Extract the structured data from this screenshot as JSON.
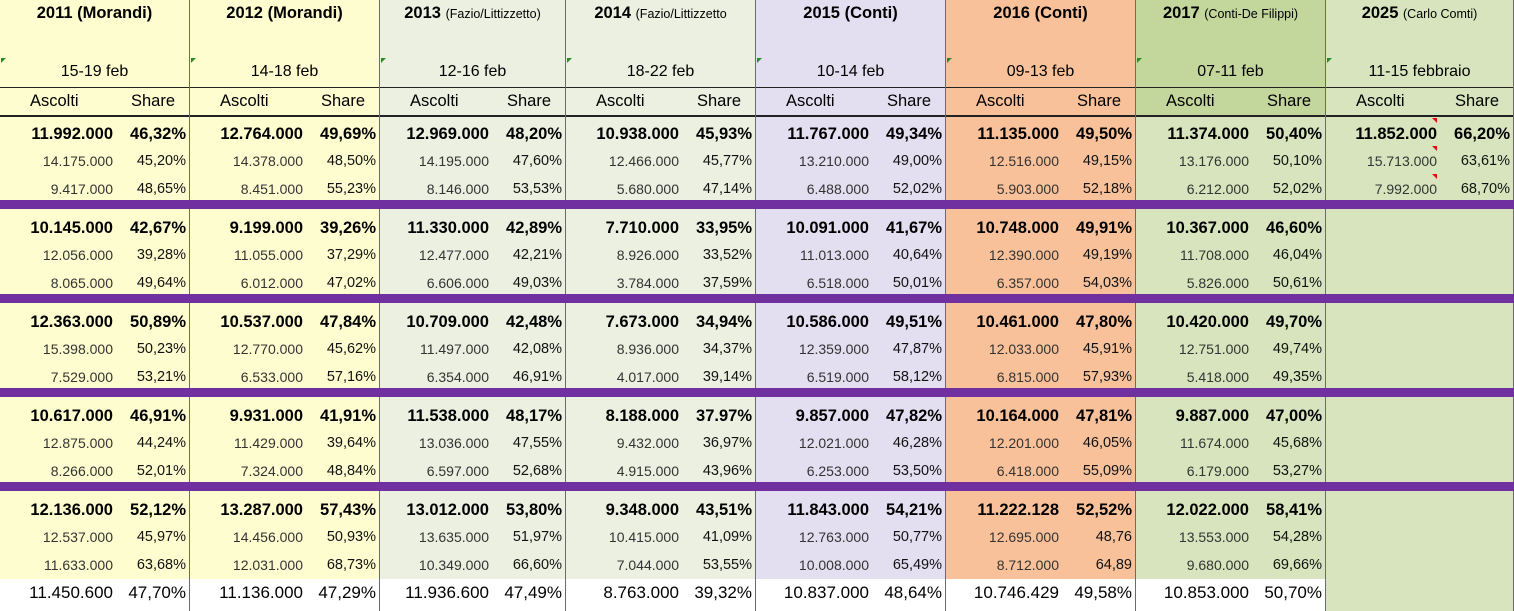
{
  "colors": {
    "divider": "#7030a0",
    "corner_marker": "#2b8a2b",
    "comment_marker": "#e01010"
  },
  "labels": {
    "ascolti": "Ascolti",
    "share": "Share"
  },
  "columns": [
    {
      "year": "2011",
      "host": "(Morandi)",
      "host_style": "bold",
      "dates": "15-19 feb",
      "bg": "#fdfdcf",
      "hdr_bg": "#fdfdcf",
      "nights": [
        [
          [
            "11.992.000",
            "46,32%"
          ],
          [
            "14.175.000",
            "45,20%"
          ],
          [
            "9.417.000",
            "48,65%"
          ]
        ],
        [
          [
            "10.145.000",
            "42,67%"
          ],
          [
            "12.056.000",
            "39,28%"
          ],
          [
            "8.065.000",
            "49,64%"
          ]
        ],
        [
          [
            "12.363.000",
            "50,89%"
          ],
          [
            "15.398.000",
            "50,23%"
          ],
          [
            "7.529.000",
            "53,21%"
          ]
        ],
        [
          [
            "10.617.000",
            "46,91%"
          ],
          [
            "12.875.000",
            "44,24%"
          ],
          [
            "8.266.000",
            "52,01%"
          ]
        ],
        [
          [
            "12.136.000",
            "52,12%"
          ],
          [
            "12.537.000",
            "45,97%"
          ],
          [
            "11.633.000",
            "63,68%"
          ]
        ]
      ],
      "total": [
        "11.450.600",
        "47,70%"
      ]
    },
    {
      "year": "2012",
      "host": "(Morandi)",
      "host_style": "bold",
      "dates": "14-18 feb",
      "bg": "#fdfdcf",
      "hdr_bg": "#fdfdcf",
      "nights": [
        [
          [
            "12.764.000",
            "49,69%"
          ],
          [
            "14.378.000",
            "48,50%"
          ],
          [
            "8.451.000",
            "55,23%"
          ]
        ],
        [
          [
            "9.199.000",
            "39,26%"
          ],
          [
            "11.055.000",
            "37,29%"
          ],
          [
            "6.012.000",
            "47,02%"
          ]
        ],
        [
          [
            "10.537.000",
            "47,84%"
          ],
          [
            "12.770.000",
            "45,62%"
          ],
          [
            "6.533.000",
            "57,16%"
          ]
        ],
        [
          [
            "9.931.000",
            "41,91%"
          ],
          [
            "11.429.000",
            "39,64%"
          ],
          [
            "7.324.000",
            "48,84%"
          ]
        ],
        [
          [
            "13.287.000",
            "57,43%"
          ],
          [
            "14.456.000",
            "50,93%"
          ],
          [
            "12.031.000",
            "68,73%"
          ]
        ]
      ],
      "total": [
        "11.136.000",
        "47,29%"
      ]
    },
    {
      "year": "2013",
      "host": "(Fazio/Littizzetto)",
      "host_style": "small",
      "dates": "12-16 feb",
      "bg": "#ebf0e1",
      "hdr_bg": "#ebf0e1",
      "nights": [
        [
          [
            "12.969.000",
            "48,20%"
          ],
          [
            "14.195.000",
            "47,60%"
          ],
          [
            "8.146.000",
            "53,53%"
          ]
        ],
        [
          [
            "11.330.000",
            "42,89%"
          ],
          [
            "12.477.000",
            "42,21%"
          ],
          [
            "6.606.000",
            "49,03%"
          ]
        ],
        [
          [
            "10.709.000",
            "42,48%"
          ],
          [
            "11.497.000",
            "42,08%"
          ],
          [
            "6.354.000",
            "46,91%"
          ]
        ],
        [
          [
            "11.538.000",
            "48,17%"
          ],
          [
            "13.036.000",
            "47,55%"
          ],
          [
            "6.597.000",
            "52,68%"
          ]
        ],
        [
          [
            "13.012.000",
            "53,80%"
          ],
          [
            "13.635.000",
            "51,97%"
          ],
          [
            "10.349.000",
            "66,60%"
          ]
        ]
      ],
      "total": [
        "11.936.600",
        "47,49%"
      ]
    },
    {
      "year": "2014",
      "host": "(Fazio/Littizzetto",
      "host_style": "small",
      "dates": "18-22 feb",
      "bg": "#ebf0e1",
      "hdr_bg": "#ebf0e1",
      "nights": [
        [
          [
            "10.938.000",
            "45,93%"
          ],
          [
            "12.466.000",
            "45,77%"
          ],
          [
            "5.680.000",
            "47,14%"
          ]
        ],
        [
          [
            "7.710.000",
            "33,95%"
          ],
          [
            "8.926.000",
            "33,52%"
          ],
          [
            "3.784.000",
            "37,59%"
          ]
        ],
        [
          [
            "7.673.000",
            "34,94%"
          ],
          [
            "8.936.000",
            "34,37%"
          ],
          [
            "4.017.000",
            "39,14%"
          ]
        ],
        [
          [
            "8.188.000",
            "37.97%"
          ],
          [
            "9.432.000",
            "36,97%"
          ],
          [
            "4.915.000",
            "43,96%"
          ]
        ],
        [
          [
            "9.348.000",
            "43,51%"
          ],
          [
            "10.415.000",
            "41,09%"
          ],
          [
            "7.044.000",
            "53,55%"
          ]
        ]
      ],
      "total": [
        "8.763.000",
        "39,32%"
      ]
    },
    {
      "year": "2015",
      "host": "(Conti)",
      "host_style": "bold",
      "dates": "10-14 feb",
      "bg": "#e3def0",
      "hdr_bg": "#e3def0",
      "nights": [
        [
          [
            "11.767.000",
            "49,34%"
          ],
          [
            "13.210.000",
            "49,00%"
          ],
          [
            "6.488.000",
            "52,02%"
          ]
        ],
        [
          [
            "10.091.000",
            "41,67%"
          ],
          [
            "11.013.000",
            "40,64%"
          ],
          [
            "6.518.000",
            "50,01%"
          ]
        ],
        [
          [
            "10.586.000",
            "49,51%"
          ],
          [
            "12.359.000",
            "47,87%"
          ],
          [
            "6.519.000",
            "58,12%"
          ]
        ],
        [
          [
            "9.857.000",
            "47,82%"
          ],
          [
            "12.021.000",
            "46,28%"
          ],
          [
            "6.253.000",
            "53,50%"
          ]
        ],
        [
          [
            "11.843.000",
            "54,21%"
          ],
          [
            "12.763.000",
            "50,77%"
          ],
          [
            "10.008.000",
            "65,49%"
          ]
        ]
      ],
      "total": [
        "10.837.000",
        "48,64%"
      ]
    },
    {
      "year": "2016",
      "host": "(Conti)",
      "host_style": "bold",
      "dates": "09-13 feb",
      "bg": "#f8c19a",
      "hdr_bg": "#f8c19a",
      "nights": [
        [
          [
            "11.135.000",
            "49,50%"
          ],
          [
            "12.516.000",
            "49,15%"
          ],
          [
            "5.903.000",
            "52,18%"
          ]
        ],
        [
          [
            "10.748.000",
            "49,91%"
          ],
          [
            "12.390.000",
            "49,19%"
          ],
          [
            "6.357.000",
            "54,03%"
          ]
        ],
        [
          [
            "10.461.000",
            "47,80%"
          ],
          [
            "12.033.000",
            "45,91%"
          ],
          [
            "6.815.000",
            "57,93%"
          ]
        ],
        [
          [
            "10.164.000",
            "47,81%"
          ],
          [
            "12.201.000",
            "46,05%"
          ],
          [
            "6.418.000",
            "55,09%"
          ]
        ],
        [
          [
            "11.222.128",
            "52,52%"
          ],
          [
            "12.695.000",
            "48,76"
          ],
          [
            "8.712.000",
            "64,89"
          ]
        ]
      ],
      "total": [
        "10.746.429",
        "49,58%"
      ]
    },
    {
      "year": "2017",
      "host": "(Conti-De Filippi)",
      "host_style": "small",
      "dates": "07-11 feb",
      "bg": "#d7e4bd",
      "hdr_bg": "#c3d69b",
      "nights": [
        [
          [
            "11.374.000",
            "50,40%"
          ],
          [
            "13.176.000",
            "50,10%"
          ],
          [
            "6.212.000",
            "52,02%"
          ]
        ],
        [
          [
            "10.367.000",
            "46,60%"
          ],
          [
            "11.708.000",
            "46,04%"
          ],
          [
            "5.826.000",
            "50,61%"
          ]
        ],
        [
          [
            "10.420.000",
            "49,70%"
          ],
          [
            "12.751.000",
            "49,74%"
          ],
          [
            "5.418.000",
            "49,35%"
          ]
        ],
        [
          [
            "9.887.000",
            "47,00%"
          ],
          [
            "11.674.000",
            "45,68%"
          ],
          [
            "6.179.000",
            "53,27%"
          ]
        ],
        [
          [
            "12.022.000",
            "58,41%"
          ],
          [
            "13.553.000",
            "54,28%"
          ],
          [
            "9.680.000",
            "69,66%"
          ]
        ]
      ],
      "total": [
        "10.853.000",
        "50,70%"
      ]
    },
    {
      "year": "2025",
      "host": "(Carlo Comti)",
      "host_style": "small",
      "dates": "11-15 febbraio",
      "bg": "#d7e4bd",
      "hdr_bg": "#d7e4bd",
      "nights": [
        [
          [
            "11.852.000",
            "66,20%"
          ],
          [
            "15.713.000",
            "63,61%"
          ],
          [
            "7.992.000",
            "68,70%"
          ]
        ]
      ],
      "total": [
        "",
        ""
      ]
    }
  ]
}
